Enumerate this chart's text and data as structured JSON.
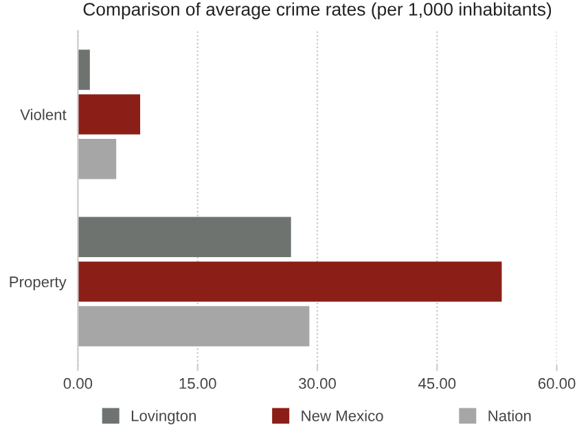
{
  "chart_data": {
    "type": "bar",
    "orientation": "horizontal",
    "title": "Comparison of average crime rates (per 1,000 inhabitants)",
    "categories": [
      "Violent",
      "Property"
    ],
    "series": [
      {
        "name": "Lovington",
        "color": "#6e7370",
        "values": [
          1.5,
          26.7
        ]
      },
      {
        "name": "New Mexico",
        "color": "#8b1e17",
        "values": [
          7.8,
          53.1
        ]
      },
      {
        "name": "Nation",
        "color": "#a6a6a6",
        "values": [
          4.8,
          29.0
        ]
      }
    ],
    "xlim": [
      0,
      60
    ],
    "xticks": [
      {
        "value": 0,
        "label": "0.00"
      },
      {
        "value": 15,
        "label": "15.00"
      },
      {
        "value": 30,
        "label": "30.00"
      },
      {
        "value": 45,
        "label": "45.00"
      },
      {
        "value": 60,
        "label": "60.00"
      }
    ],
    "grid": "x",
    "legend": "bottom"
  }
}
